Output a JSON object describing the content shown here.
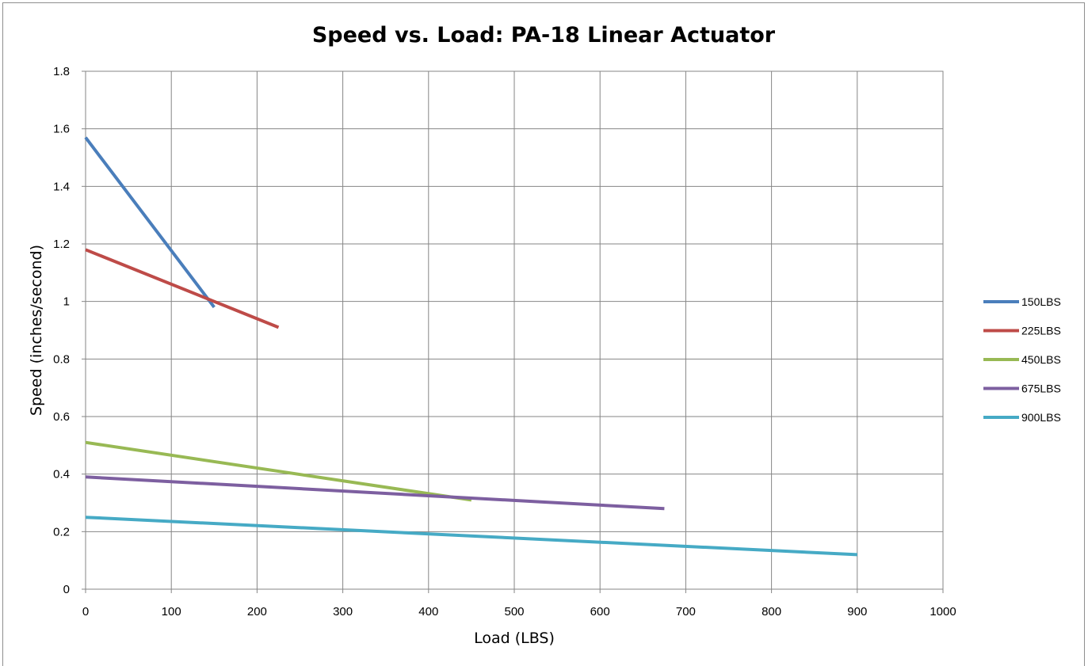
{
  "chart_data": {
    "type": "line",
    "title": "Speed vs. Load: PA-18 Linear Actuator",
    "xlabel": "Load (LBS)",
    "ylabel": "Speed (inches/second)",
    "xlim": [
      0,
      1000
    ],
    "ylim": [
      0,
      1.8
    ],
    "x_ticks": [
      0,
      100,
      200,
      300,
      400,
      500,
      600,
      700,
      800,
      900,
      1000
    ],
    "y_ticks": [
      0,
      0.2,
      0.4,
      0.6,
      0.8,
      1,
      1.2,
      1.4,
      1.6,
      1.8
    ],
    "x_tick_labels": [
      "0",
      "100",
      "200",
      "300",
      "400",
      "500",
      "600",
      "700",
      "800",
      "900",
      "1000"
    ],
    "y_tick_labels": [
      "0",
      "0.2",
      "0.4",
      "0.6",
      "0.8",
      "1",
      "1.2",
      "1.4",
      "1.6",
      "1.8"
    ],
    "grid": true,
    "legend_position": "right",
    "series": [
      {
        "name": "150LBS",
        "color": "#4a7ebb",
        "x": [
          0,
          150
        ],
        "y": [
          1.57,
          0.98
        ]
      },
      {
        "name": "225LBS",
        "color": "#be4b48",
        "x": [
          0,
          225
        ],
        "y": [
          1.18,
          0.91
        ]
      },
      {
        "name": "450LBS",
        "color": "#98b954",
        "x": [
          0,
          450
        ],
        "y": [
          0.51,
          0.31
        ]
      },
      {
        "name": "675LBS",
        "color": "#7d5fa0",
        "x": [
          0,
          675
        ],
        "y": [
          0.39,
          0.28
        ]
      },
      {
        "name": "900LBS",
        "color": "#46aac5",
        "x": [
          0,
          900
        ],
        "y": [
          0.25,
          0.12
        ]
      }
    ]
  }
}
